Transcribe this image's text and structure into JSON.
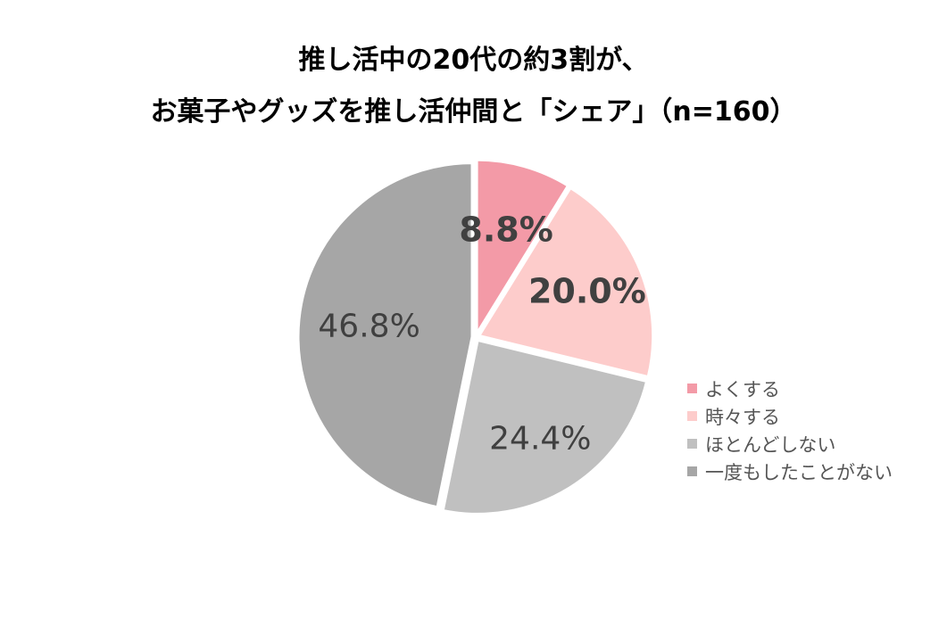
{
  "title_lines": [
    "推し活中の20代の約3割が、",
    "お菓子やグッズを推し活仲間と「シェア」（n=160）"
  ],
  "chart_data": {
    "type": "pie",
    "title": "推し活中の20代の約3割が、お菓子やグッズを推し活仲間と「シェア」（n=160）",
    "start": "top, clockwise",
    "slices": [
      {
        "label": "よくする",
        "value": 8.8,
        "display": "8.8%",
        "color": "#f39aa7",
        "label_color": "#404040",
        "label_bold": true
      },
      {
        "label": "時々する",
        "value": 20.0,
        "display": "20.0%",
        "color": "#fdcccb",
        "label_color": "#404040",
        "label_bold": true
      },
      {
        "label": "ほとんどしない",
        "value": 24.4,
        "display": "24.4%",
        "color": "#c0c0c0",
        "label_color": "#404040",
        "label_bold": false
      },
      {
        "label": "一度もしたことがない",
        "value": 46.8,
        "display": "46.8%",
        "color": "#a6a6a6",
        "label_color": "#404040",
        "label_bold": false
      }
    ],
    "legend_position": "right"
  }
}
